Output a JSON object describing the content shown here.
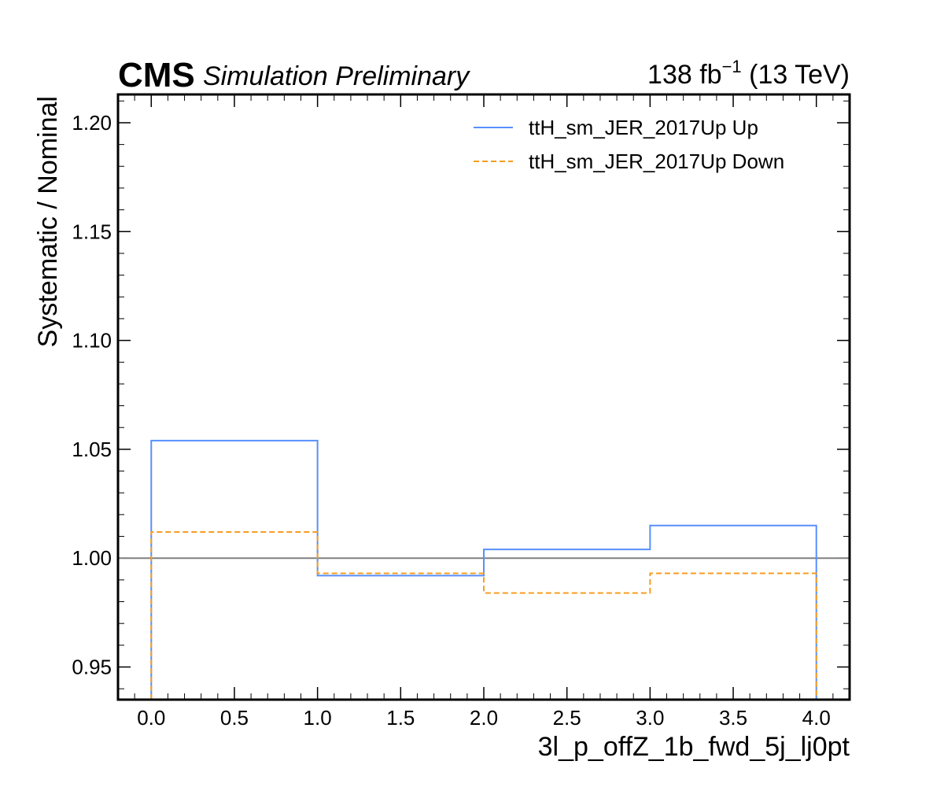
{
  "header": {
    "experiment": "CMS",
    "status": "Simulation Preliminary",
    "lumi_value": "138 fb",
    "lumi_exp": "−1",
    "lumi_energy": " (13 TeV)"
  },
  "chart_data": {
    "type": "line",
    "drawstyle": "steps",
    "xlabel": "3l_p_offZ_1b_fwd_5j_lj0pt",
    "ylabel": "Systematic / Nominal",
    "xlim": [
      -0.2,
      4.2
    ],
    "ylim": [
      0.935,
      1.213
    ],
    "xticks": [
      "0.0",
      "0.5",
      "1.0",
      "1.5",
      "2.0",
      "2.5",
      "3.0",
      "3.5",
      "4.0"
    ],
    "yticks": [
      "0.95",
      "1.00",
      "1.05",
      "1.10",
      "1.15",
      "1.20"
    ],
    "bin_edges": [
      0,
      1,
      2,
      3,
      4
    ],
    "reference_line": 1.0,
    "legend_position": "top-right",
    "series": [
      {
        "name": "ttH_sm_JER_2017Up Up",
        "values": [
          1.054,
          0.992,
          1.004,
          1.015
        ],
        "color": "#5790fc",
        "dash": "solid"
      },
      {
        "name": "ttH_sm_JER_2017Up Down",
        "values": [
          1.012,
          0.993,
          0.984,
          0.993
        ],
        "color": "#f89c20",
        "dash": "dashed"
      }
    ]
  }
}
